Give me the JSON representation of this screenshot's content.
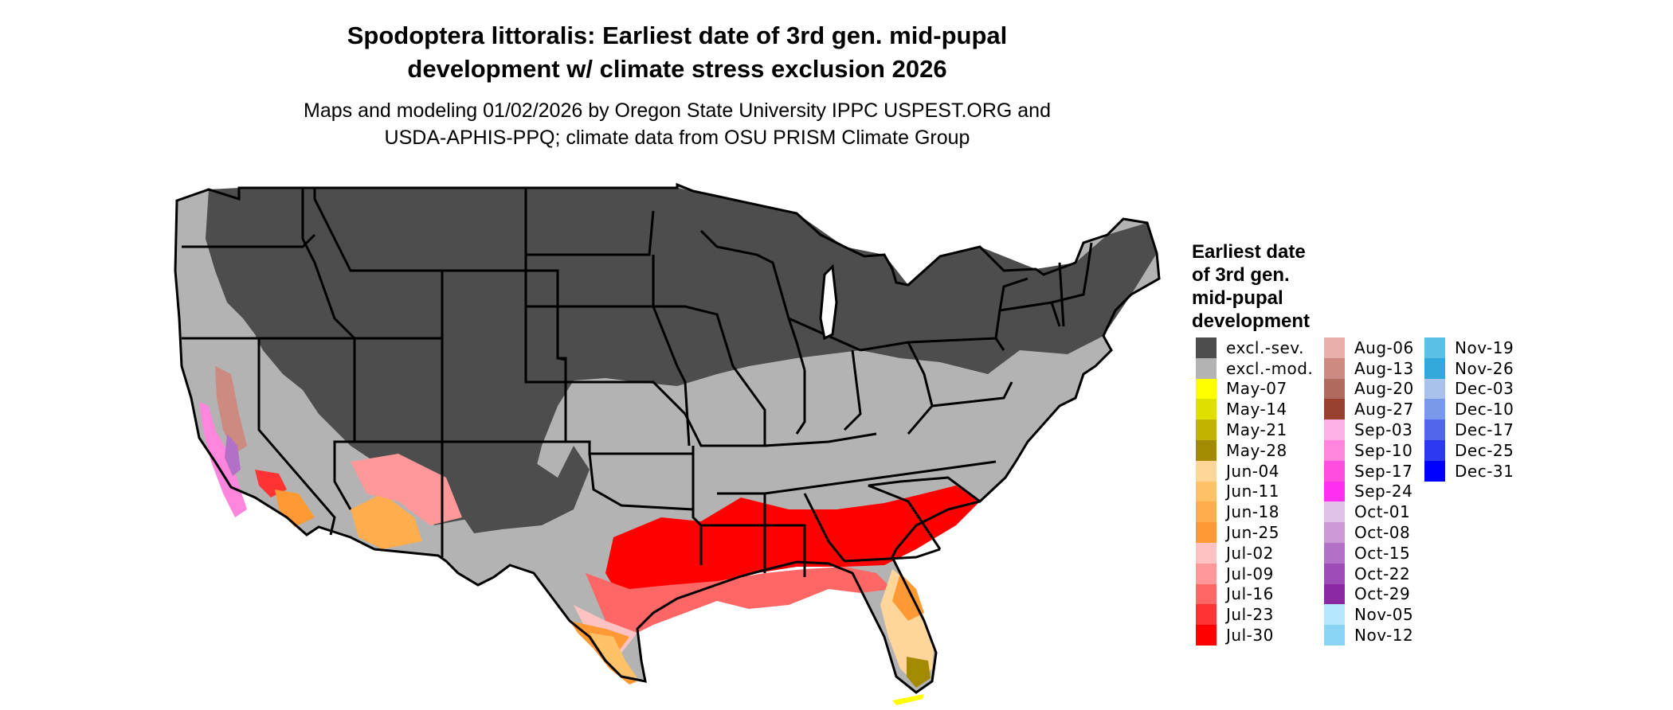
{
  "title": {
    "line1": "Spodoptera littoralis: Earliest date of 3rd gen. mid-pupal",
    "line2": "development w/ climate stress exclusion 2026"
  },
  "subtitle": {
    "line1": "Maps and modeling 01/02/2026 by Oregon State University IPPC USPEST.ORG and",
    "line2": "USDA-APHIS-PPQ; climate data from OSU PRISM Climate Group"
  },
  "legend": {
    "title_lines": [
      "Earliest date",
      "of 3rd gen.",
      "mid-pupal",
      "development"
    ],
    "columns": [
      [
        {
          "label": "excl.-sev.",
          "color": "#4d4d4d"
        },
        {
          "label": "excl.-mod.",
          "color": "#b3b3b3"
        },
        {
          "label": "May-07",
          "color": "#ffff00"
        },
        {
          "label": "May-14",
          "color": "#e0e000"
        },
        {
          "label": "May-21",
          "color": "#c2b300"
        },
        {
          "label": "May-28",
          "color": "#a38a00"
        },
        {
          "label": "Jun-04",
          "color": "#ffd699"
        },
        {
          "label": "Jun-11",
          "color": "#ffc266"
        },
        {
          "label": "Jun-18",
          "color": "#ffad4d"
        },
        {
          "label": "Jun-25",
          "color": "#ff9933"
        },
        {
          "label": "Jul-02",
          "color": "#ffc2c2"
        },
        {
          "label": "Jul-09",
          "color": "#ff9999"
        },
        {
          "label": "Jul-16",
          "color": "#ff6666"
        },
        {
          "label": "Jul-23",
          "color": "#ff3333"
        },
        {
          "label": "Jul-30",
          "color": "#ff0000"
        }
      ],
      [
        {
          "label": "Aug-06",
          "color": "#e8b0a8"
        },
        {
          "label": "Aug-13",
          "color": "#cc8a80"
        },
        {
          "label": "Aug-20",
          "color": "#b06a5e"
        },
        {
          "label": "Aug-27",
          "color": "#99402f"
        },
        {
          "label": "Sep-03",
          "color": "#ffb0e6"
        },
        {
          "label": "Sep-10",
          "color": "#ff85dd"
        },
        {
          "label": "Sep-17",
          "color": "#ff4de0"
        },
        {
          "label": "Sep-24",
          "color": "#ff2ef0"
        },
        {
          "label": "Oct-01",
          "color": "#e0c2e8"
        },
        {
          "label": "Oct-08",
          "color": "#cc99d6"
        },
        {
          "label": "Oct-15",
          "color": "#b370c7"
        },
        {
          "label": "Oct-22",
          "color": "#9e4db8"
        },
        {
          "label": "Oct-29",
          "color": "#8a29a3"
        },
        {
          "label": "Nov-05",
          "color": "#b3e8ff"
        },
        {
          "label": "Nov-12",
          "color": "#8ad4f5"
        }
      ],
      [
        {
          "label": "Nov-19",
          "color": "#5cbfe6"
        },
        {
          "label": "Nov-26",
          "color": "#33a8db"
        },
        {
          "label": "Dec-03",
          "color": "#a8c2eb"
        },
        {
          "label": "Dec-10",
          "color": "#7a99eb"
        },
        {
          "label": "Dec-17",
          "color": "#5266eb"
        },
        {
          "label": "Dec-25",
          "color": "#2e38f0"
        },
        {
          "label": "Dec-31",
          "color": "#0000ff"
        }
      ]
    ]
  }
}
